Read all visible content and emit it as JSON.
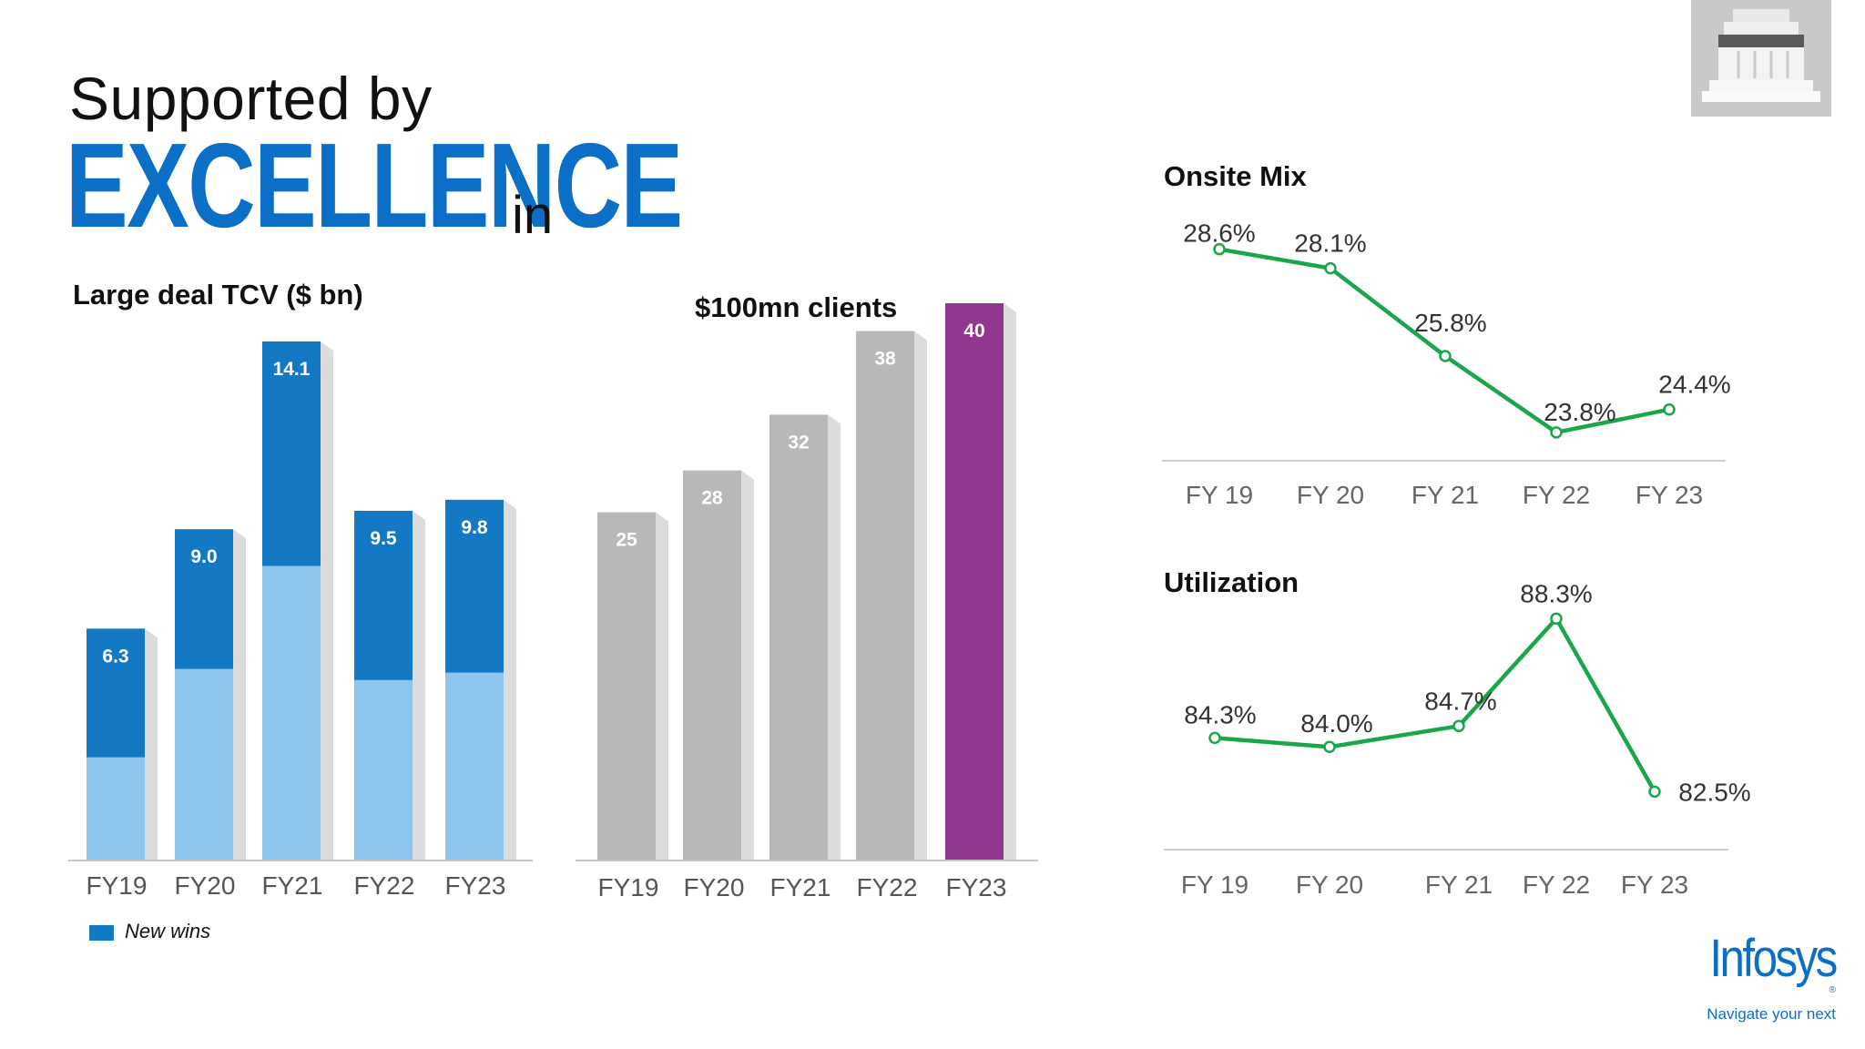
{
  "header": {
    "title_line1": "Supported by",
    "title_big": "EXCELLENCE",
    "title_small": "in"
  },
  "legend": {
    "new_wins": "New wins"
  },
  "brand": {
    "name": "Infosys",
    "registered": "®",
    "tagline": "Navigate your next"
  },
  "chart_data": [
    {
      "id": "large-deal-tcv",
      "type": "bar",
      "title": "Large deal TCV ($ bn)",
      "categories": [
        "FY19",
        "FY20",
        "FY21",
        "FY22",
        "FY23"
      ],
      "series": [
        {
          "name": "",
          "values": [
            6.3,
            9.0,
            14.1,
            9.5,
            9.8
          ],
          "labels": [
            "6.3",
            "9.0",
            "14.1",
            "9.5",
            "9.8"
          ]
        },
        {
          "name": "New wins",
          "values": [
            2.8,
            5.2,
            8.0,
            4.9,
            5.1
          ]
        }
      ],
      "ylim": [
        0,
        15
      ],
      "colors": {
        "total": "#1479c5",
        "renewal": "#8dc5ee",
        "shadow": "#dcdcdc"
      }
    },
    {
      "id": "100mn-clients",
      "type": "bar",
      "title": "$100mn clients",
      "categories": [
        "FY19",
        "FY20",
        "FY21",
        "FY22",
        "FY23"
      ],
      "values": [
        25,
        28,
        32,
        38,
        40
      ],
      "labels": [
        "25",
        "28",
        "32",
        "38",
        "40"
      ],
      "ylim": [
        0,
        42
      ],
      "colors": {
        "default": "#b8b8b8",
        "highlight": "#93368f",
        "shadow": "#dcdcdc"
      }
    },
    {
      "id": "onsite-mix",
      "type": "line",
      "title": "Onsite Mix",
      "categories": [
        "FY 19",
        "FY 20",
        "FY 21",
        "FY 22",
        "FY 23"
      ],
      "values": [
        28.6,
        28.1,
        25.8,
        23.8,
        24.4
      ],
      "labels": [
        "28.6%",
        "28.1%",
        "25.8%",
        "23.8%",
        "24.4%"
      ],
      "ylim": [
        23.2,
        30.0
      ],
      "color": "#1aa64a"
    },
    {
      "id": "utilization",
      "type": "line",
      "title": "Utilization",
      "categories": [
        "FY 19",
        "FY 20",
        "FY 21",
        "FY 22",
        "FY 23"
      ],
      "values": [
        84.3,
        84.0,
        84.7,
        88.3,
        82.5
      ],
      "labels": [
        "84.3%",
        "84.0%",
        "84.7%",
        "88.3%",
        "82.5%"
      ],
      "ylim": [
        81.2,
        89.5
      ],
      "color": "#1aa64a"
    }
  ]
}
